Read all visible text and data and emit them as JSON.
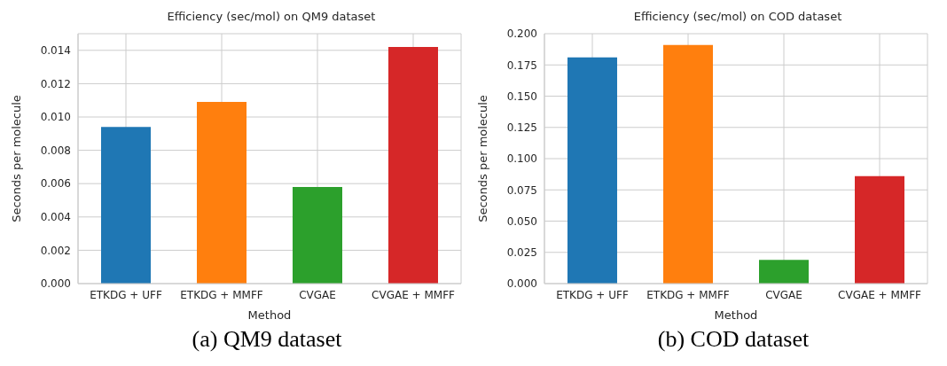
{
  "chart_data": [
    {
      "type": "bar",
      "title": "Efficiency (sec/mol) on QM9 dataset",
      "xlabel": "Method",
      "ylabel": "Seconds per molecule",
      "categories": [
        "ETKDG + UFF",
        "ETKDG + MMFF",
        "CVGAE",
        "CVGAE + MMFF"
      ],
      "values": [
        0.0094,
        0.0109,
        0.0058,
        0.0142
      ],
      "colors": [
        "#1f77b4",
        "#ff7f0e",
        "#2ca02c",
        "#d62728"
      ],
      "ylim": [
        0,
        0.015
      ],
      "yticks": [
        {
          "value": 0,
          "label": "0.000"
        },
        {
          "value": 0.002,
          "label": "0.002"
        },
        {
          "value": 0.004,
          "label": "0.004"
        },
        {
          "value": 0.006,
          "label": "0.006"
        },
        {
          "value": 0.008,
          "label": "0.008"
        },
        {
          "value": 0.01,
          "label": "0.010"
        },
        {
          "value": 0.012,
          "label": "0.012"
        },
        {
          "value": 0.014,
          "label": "0.014"
        }
      ],
      "grid": true,
      "annotations": [
        "(a) QM9 dataset"
      ]
    },
    {
      "type": "bar",
      "title": "Efficiency (sec/mol) on COD dataset",
      "xlabel": "Method",
      "ylabel": "Seconds per molecule",
      "categories": [
        "ETKDG + UFF",
        "ETKDG + MMFF",
        "CVGAE",
        "CVGAE + MMFF"
      ],
      "values": [
        0.181,
        0.191,
        0.019,
        0.086
      ],
      "colors": [
        "#1f77b4",
        "#ff7f0e",
        "#2ca02c",
        "#d62728"
      ],
      "ylim": [
        0,
        0.2
      ],
      "yticks": [
        {
          "value": 0,
          "label": "0.000"
        },
        {
          "value": 0.025,
          "label": "0.025"
        },
        {
          "value": 0.05,
          "label": "0.050"
        },
        {
          "value": 0.075,
          "label": "0.075"
        },
        {
          "value": 0.1,
          "label": "0.100"
        },
        {
          "value": 0.125,
          "label": "0.125"
        },
        {
          "value": 0.15,
          "label": "0.150"
        },
        {
          "value": 0.175,
          "label": "0.175"
        },
        {
          "value": 0.2,
          "label": "0.200"
        }
      ],
      "grid": true,
      "annotations": [
        "(b) COD dataset"
      ]
    }
  ]
}
